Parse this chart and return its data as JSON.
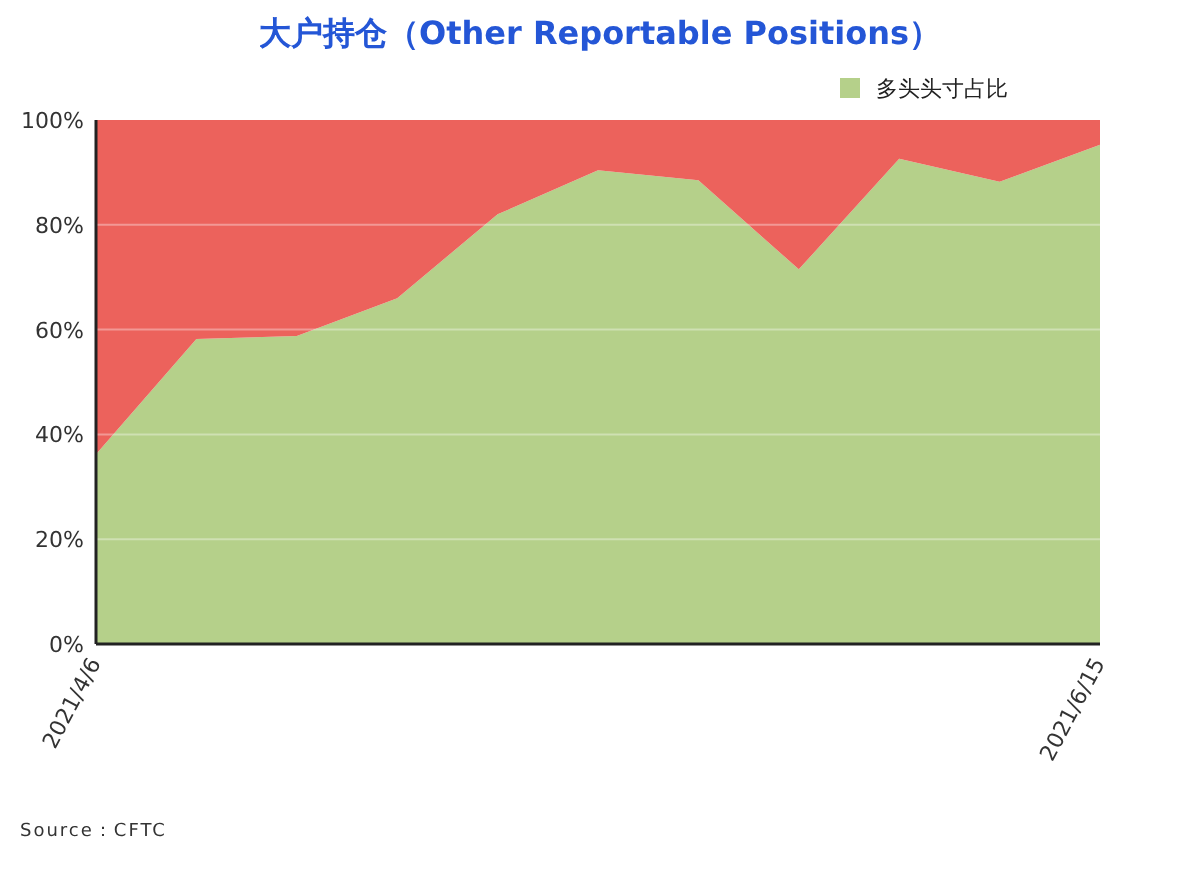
{
  "chart_data": {
    "type": "area",
    "title": "大户持仓（Other Reportable Positions）",
    "stacked": true,
    "categories": [
      "2021/4/6",
      null,
      null,
      null,
      null,
      null,
      null,
      null,
      null,
      null,
      "2021/6/15"
    ],
    "series": [
      {
        "name": "多头头寸占比",
        "color": "#b5d08a",
        "values": [
          36.2,
          58.2,
          58.8,
          66.0,
          82.0,
          90.4,
          88.5,
          71.5,
          92.6,
          88.2,
          95.3
        ]
      },
      {
        "color": "#ec625c",
        "values": [
          63.8,
          41.8,
          41.2,
          34.0,
          18.0,
          9.6,
          11.5,
          28.5,
          7.4,
          11.8,
          4.7
        ]
      }
    ],
    "ylim": [
      0,
      100
    ],
    "yticks": [
      {
        "value": 0,
        "label": "0%"
      },
      {
        "value": 20,
        "label": "20%"
      },
      {
        "value": 40,
        "label": "40%"
      },
      {
        "value": 60,
        "label": "60%"
      },
      {
        "value": 80,
        "label": "80%"
      },
      {
        "value": 100,
        "label": "100%"
      }
    ],
    "grid": "y",
    "legend": "top right",
    "annotations": [
      "Source：CFTC"
    ]
  }
}
